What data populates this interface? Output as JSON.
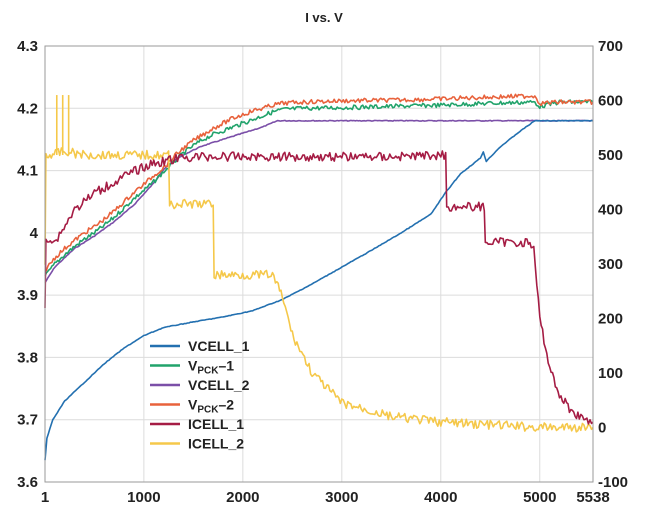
{
  "chart_data": {
    "type": "line",
    "title": "I vs. V",
    "xlabel": "",
    "ylabel": "",
    "y2label": "",
    "xlim": [
      1,
      5538
    ],
    "ylim": [
      3.6,
      4.3
    ],
    "y2lim": [
      -100,
      700
    ],
    "x_ticks": [
      "1",
      "1000",
      "2000",
      "3000",
      "4000",
      "5000",
      "5538"
    ],
    "y_ticks": [
      "3.6",
      "3.7",
      "3.8",
      "3.9",
      "4",
      "4.1",
      "4.2",
      "4.3"
    ],
    "y2_ticks": [
      "-100",
      "0",
      "100",
      "200",
      "300",
      "400",
      "500",
      "600",
      "700"
    ],
    "grid": true,
    "legend": "bottom-left",
    "series": [
      {
        "name": "VCELL_1",
        "legend_main": "VCELL_1",
        "legend_sub": "",
        "axis": "left",
        "color": "#2370b0",
        "x": [
          1,
          20,
          80,
          200,
          400,
          600,
          800,
          1000,
          1200,
          1500,
          1800,
          2100,
          2400,
          2700,
          3000,
          3300,
          3600,
          3900,
          4050,
          4200,
          4400,
          4430,
          4460,
          4600,
          4800,
          4950,
          5100,
          5300,
          5538
        ],
        "y": [
          3.635,
          3.67,
          3.7,
          3.73,
          3.76,
          3.79,
          3.815,
          3.835,
          3.848,
          3.857,
          3.865,
          3.875,
          3.893,
          3.918,
          3.945,
          3.972,
          4.0,
          4.03,
          4.065,
          4.095,
          4.12,
          4.13,
          4.115,
          4.138,
          4.163,
          4.18,
          4.18,
          4.18,
          4.18
        ]
      },
      {
        "name": "VPCK_1",
        "legend_main": "V",
        "legend_sub": "PCK",
        "axis": "left",
        "color": "#21a36b",
        "x": [
          1,
          100,
          200,
          300,
          400,
          500,
          600,
          700,
          800,
          900,
          1000,
          1100,
          1200,
          1250,
          1300,
          1400,
          1500,
          1600,
          1700,
          1800,
          1900,
          2000,
          2100,
          2200,
          2300,
          2400,
          2600,
          3000,
          3500,
          4000,
          4500,
          4950,
          5000,
          5200,
          5538
        ],
        "y": [
          3.93,
          3.95,
          3.965,
          3.978,
          3.99,
          4.0,
          4.012,
          4.025,
          4.04,
          4.055,
          4.068,
          4.082,
          4.098,
          4.105,
          4.113,
          4.128,
          4.14,
          4.15,
          4.158,
          4.164,
          4.17,
          4.176,
          4.182,
          4.188,
          4.194,
          4.198,
          4.2,
          4.201,
          4.203,
          4.205,
          4.208,
          4.21,
          4.203,
          4.21,
          4.21
        ]
      },
      {
        "name": "VCELL_2",
        "legend_main": "VCELL_2",
        "legend_sub": "",
        "axis": "left",
        "color": "#7b4fa8",
        "x": [
          1,
          100,
          300,
          500,
          700,
          900,
          1100,
          1200,
          1300,
          1400,
          1500,
          1600,
          1700,
          1800,
          2000,
          2200,
          2350,
          2500,
          3000,
          4000,
          5000,
          5538
        ],
        "y": [
          3.92,
          3.945,
          3.975,
          3.995,
          4.018,
          4.045,
          4.08,
          4.102,
          4.115,
          4.125,
          4.133,
          4.14,
          4.145,
          4.15,
          4.16,
          4.17,
          4.18,
          4.18,
          4.18,
          4.18,
          4.18,
          4.18
        ]
      },
      {
        "name": "VPCK_2",
        "legend_main": "V",
        "legend_sub": "PCK",
        "axis": "left",
        "color": "#e8623c",
        "x": [
          1,
          100,
          200,
          300,
          400,
          500,
          600,
          700,
          800,
          900,
          1000,
          1100,
          1200,
          1250,
          1300,
          1400,
          1500,
          1600,
          1700,
          1800,
          1900,
          2000,
          2100,
          2200,
          2300,
          2400,
          2600,
          3000,
          3500,
          4000,
          4500,
          4950,
          5000,
          5200,
          5538
        ],
        "y": [
          3.94,
          3.96,
          3.975,
          3.988,
          4.0,
          4.01,
          4.022,
          4.035,
          4.05,
          4.065,
          4.078,
          4.092,
          4.105,
          4.112,
          4.122,
          4.136,
          4.148,
          4.158,
          4.168,
          4.176,
          4.184,
          4.19,
          4.196,
          4.2,
          4.205,
          4.208,
          4.21,
          4.212,
          4.213,
          4.215,
          4.218,
          4.22,
          4.208,
          4.21,
          4.21
        ]
      },
      {
        "name": "ICELL_1",
        "legend_main": "ICELL_1",
        "legend_sub": "",
        "axis": "right",
        "color": "#a51c44",
        "x": [
          1,
          10,
          100,
          300,
          500,
          700,
          900,
          1100,
          1250,
          1400,
          1600,
          2000,
          2500,
          3000,
          3500,
          4000,
          4050,
          4060,
          4400,
          4440,
          4450,
          4900,
          4940,
          5000,
          5100,
          5200,
          5300,
          5400,
          5538
        ],
        "y": [
          220,
          350,
          340,
          400,
          430,
          450,
          470,
          485,
          490,
          495,
          497,
          497,
          497,
          497,
          497,
          500,
          500,
          405,
          405,
          405,
          340,
          340,
          325,
          200,
          110,
          60,
          35,
          20,
          10
        ]
      },
      {
        "name": "ICELL_2",
        "legend_main": "ICELL_2",
        "legend_sub": "",
        "axis": "right",
        "color": "#f5c84a",
        "x": [
          1,
          10,
          50,
          150,
          200,
          250,
          400,
          800,
          1200,
          1250,
          1260,
          1700,
          1710,
          2300,
          2400,
          2500,
          2700,
          3000,
          3500,
          4000,
          4500,
          5000,
          5538
        ],
        "y": [
          300,
          500,
          500,
          505,
          505,
          505,
          500,
          500,
          500,
          500,
          410,
          410,
          280,
          280,
          240,
          170,
          100,
          45,
          20,
          10,
          5,
          0,
          0
        ]
      }
    ],
    "spikes": [
      {
        "series": "ICELL_2",
        "x": [
          120,
          180,
          240
        ],
        "y": 610
      }
    ]
  }
}
